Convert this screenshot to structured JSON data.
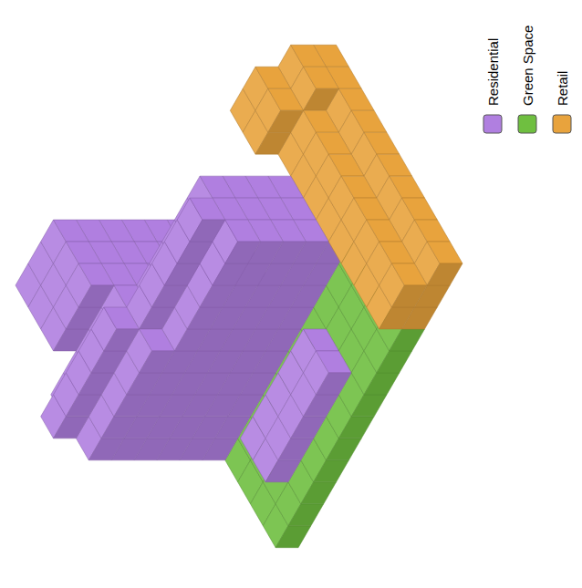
{
  "chart_data": {
    "type": "voxel",
    "tick_labels": false,
    "legend": "upper right",
    "series": [
      {
        "name": "Residential",
        "color": "#b07fe0",
        "columns": [
          [
            0,
            3,
            7
          ],
          [
            1,
            3,
            7
          ],
          [
            2,
            3,
            7
          ],
          [
            3,
            3,
            7
          ],
          [
            4,
            3,
            7
          ],
          [
            5,
            3,
            6
          ],
          [
            6,
            3,
            6
          ],
          [
            7,
            3,
            6
          ],
          [
            8,
            3,
            6
          ],
          [
            9,
            3,
            6
          ],
          [
            0,
            4,
            8
          ],
          [
            1,
            4,
            8
          ],
          [
            2,
            4,
            8
          ],
          [
            3,
            4,
            8
          ],
          [
            4,
            4,
            8
          ],
          [
            5,
            4,
            7
          ],
          [
            6,
            4,
            7
          ],
          [
            7,
            4,
            7
          ],
          [
            8,
            4,
            7
          ],
          [
            9,
            4,
            7
          ],
          [
            0,
            5,
            7
          ],
          [
            1,
            5,
            7
          ],
          [
            2,
            5,
            7
          ],
          [
            3,
            5,
            7
          ],
          [
            4,
            5,
            7
          ],
          [
            5,
            5,
            6
          ],
          [
            6,
            5,
            6
          ],
          [
            7,
            5,
            6
          ],
          [
            8,
            5,
            6
          ],
          [
            9,
            5,
            6
          ],
          [
            2,
            0,
            8
          ],
          [
            3,
            0,
            8
          ],
          [
            4,
            0,
            8
          ],
          [
            2,
            1,
            8
          ],
          [
            3,
            1,
            8
          ],
          [
            4,
            1,
            8
          ],
          [
            2,
            2,
            8
          ],
          [
            3,
            2,
            8
          ],
          [
            4,
            2,
            8
          ],
          [
            2,
            7,
            2
          ],
          [
            3,
            7,
            2
          ],
          [
            4,
            7,
            2
          ],
          [
            5,
            7,
            2
          ],
          [
            6,
            7,
            2
          ],
          [
            2,
            8,
            2
          ],
          [
            3,
            8,
            2
          ],
          [
            4,
            8,
            2
          ],
          [
            5,
            8,
            2
          ],
          [
            6,
            8,
            2
          ]
        ]
      },
      {
        "name": "Green Space",
        "color": "#6fbf40",
        "columns": [
          [
            0,
            6,
            1
          ],
          [
            1,
            6,
            1
          ],
          [
            2,
            6,
            1
          ],
          [
            3,
            6,
            1
          ],
          [
            4,
            6,
            1
          ],
          [
            5,
            6,
            1
          ],
          [
            6,
            6,
            1
          ],
          [
            7,
            6,
            1
          ],
          [
            8,
            6,
            1
          ],
          [
            9,
            6,
            1
          ],
          [
            0,
            7,
            1
          ],
          [
            1,
            7,
            1
          ],
          [
            7,
            7,
            1
          ],
          [
            8,
            7,
            1
          ],
          [
            9,
            7,
            1
          ],
          [
            0,
            8,
            1
          ],
          [
            1,
            8,
            1
          ],
          [
            7,
            8,
            1
          ],
          [
            8,
            8,
            1
          ],
          [
            9,
            8,
            1
          ],
          [
            0,
            9,
            1
          ],
          [
            1,
            9,
            1
          ],
          [
            2,
            9,
            1
          ],
          [
            3,
            9,
            1
          ],
          [
            4,
            9,
            1
          ],
          [
            5,
            9,
            1
          ],
          [
            6,
            9,
            1
          ],
          [
            7,
            9,
            1
          ],
          [
            8,
            9,
            1
          ],
          [
            9,
            9,
            1
          ]
        ]
      },
      {
        "name": "Retail",
        "color": "#e8a33d",
        "columns": [
          [
            10,
            0,
            3
          ],
          [
            11,
            0,
            3
          ],
          [
            12,
            0,
            2
          ],
          [
            10,
            1,
            3
          ],
          [
            11,
            1,
            3
          ],
          [
            12,
            1,
            2
          ],
          [
            10,
            2,
            2
          ],
          [
            11,
            2,
            2
          ],
          [
            12,
            2,
            1
          ],
          [
            10,
            3,
            2
          ],
          [
            11,
            3,
            2
          ],
          [
            12,
            3,
            1
          ],
          [
            10,
            4,
            2
          ],
          [
            11,
            4,
            2
          ],
          [
            12,
            4,
            1
          ],
          [
            10,
            5,
            2
          ],
          [
            11,
            5,
            2
          ],
          [
            12,
            5,
            1
          ],
          [
            10,
            6,
            2
          ],
          [
            11,
            6,
            2
          ],
          [
            12,
            6,
            1
          ],
          [
            10,
            7,
            2
          ],
          [
            11,
            7,
            2
          ],
          [
            12,
            7,
            1
          ],
          [
            10,
            8,
            2
          ],
          [
            11,
            8,
            2
          ],
          [
            12,
            8,
            1
          ],
          [
            10,
            9,
            2
          ],
          [
            11,
            9,
            2
          ],
          [
            12,
            9,
            1
          ]
        ]
      }
    ]
  }
}
